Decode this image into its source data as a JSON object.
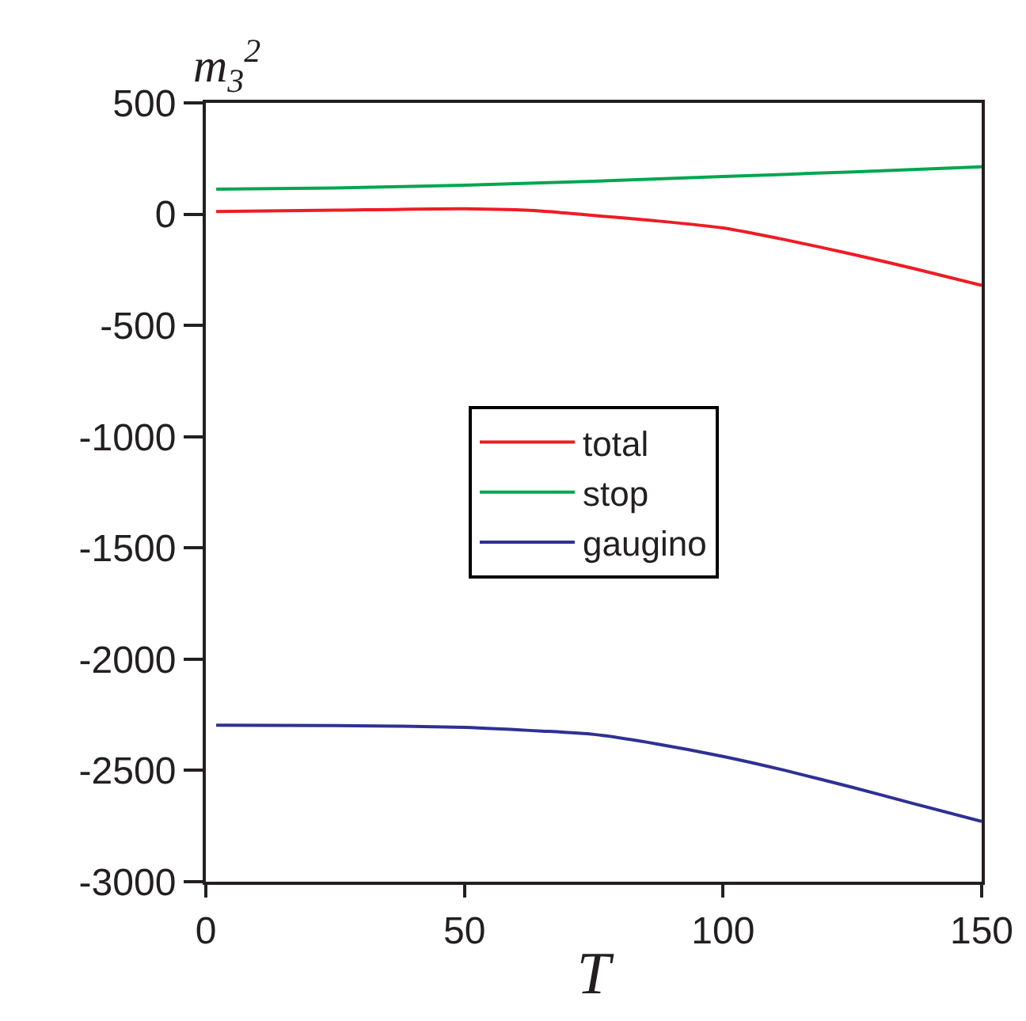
{
  "chart_data": {
    "type": "line",
    "xlabel": "T",
    "ylabel": "m$_{3}$$^{2}$",
    "xlim": [
      0,
      150
    ],
    "ylim": [
      -3000,
      500
    ],
    "xticks": [
      0,
      50,
      100,
      150
    ],
    "yticks": [
      -3000,
      -2500,
      -2000,
      -1500,
      -1000,
      -500,
      0,
      500
    ],
    "grid": false,
    "legend": "center",
    "marker": "none",
    "line_style": "solid",
    "series": [
      {
        "name": "total",
        "color": "#ee1c25",
        "x": [
          2,
          25,
          50,
          65,
          75,
          87,
          100,
          112,
          125,
          137,
          150
        ],
        "values": [
          12,
          18,
          24,
          14,
          -6,
          -30,
          -62,
          -115,
          -180,
          -245,
          -320
        ]
      },
      {
        "name": "stop",
        "color": "#00a650",
        "x": [
          2,
          25,
          50,
          75,
          100,
          125,
          150
        ],
        "values": [
          112,
          118,
          130,
          148,
          169,
          190,
          213
        ]
      },
      {
        "name": "gaugino",
        "color": "#2e3192",
        "x": [
          2,
          25,
          50,
          65,
          75,
          87,
          100,
          112,
          125,
          137,
          150
        ],
        "values": [
          -2297,
          -2298,
          -2306,
          -2323,
          -2338,
          -2380,
          -2437,
          -2500,
          -2576,
          -2650,
          -2729
        ]
      }
    ]
  }
}
